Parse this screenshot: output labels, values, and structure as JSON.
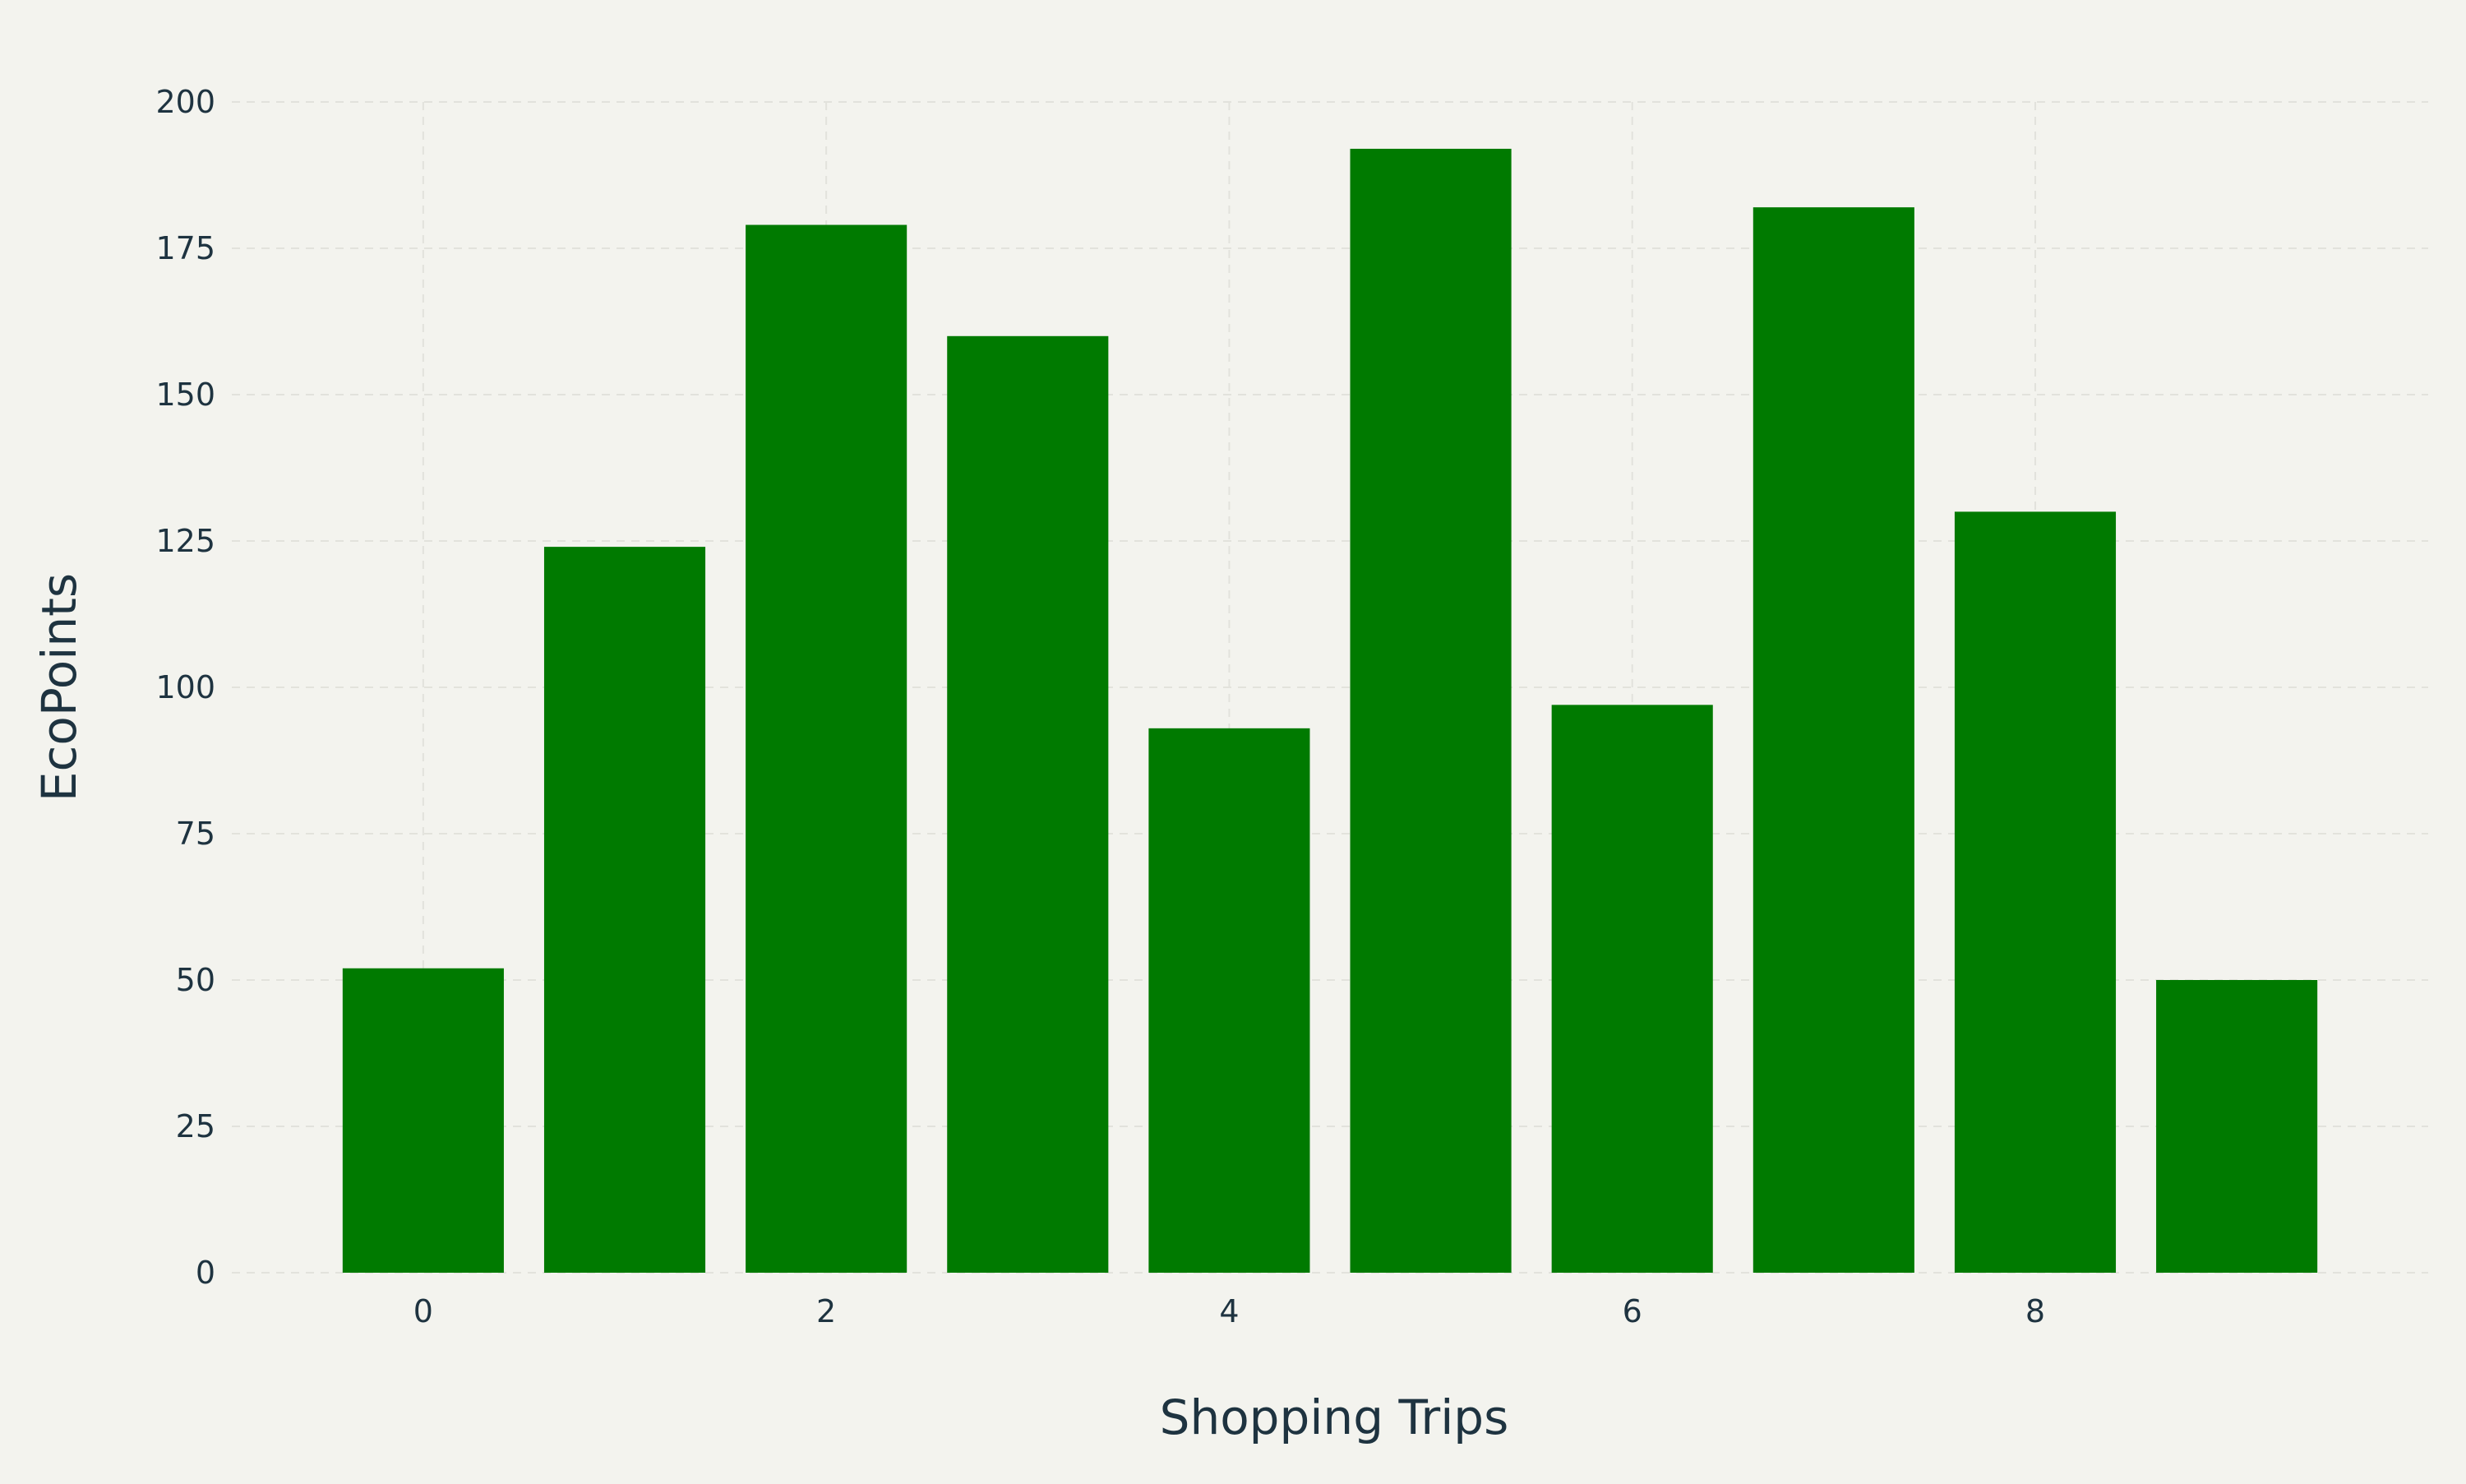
{
  "chart_data": {
    "type": "bar",
    "title": "",
    "xlabel": "Shopping Trips",
    "ylabel": "EcoPoints",
    "x": [
      0,
      1,
      2,
      3,
      4,
      5,
      6,
      7,
      8,
      9
    ],
    "values": [
      52,
      124,
      179,
      160,
      93,
      192,
      97,
      182,
      130,
      50
    ],
    "xlim": [
      -0.95,
      9.95
    ],
    "ylim": [
      0,
      200
    ],
    "x_ticks": [
      0,
      2,
      4,
      6,
      8
    ],
    "y_ticks": [
      0,
      25,
      50,
      75,
      100,
      125,
      150,
      175,
      200
    ],
    "grid": true,
    "legend": "none",
    "bar_color": "#007a00",
    "background_color": "#f3f3ee",
    "grid_color": "#e2e2dc",
    "text_color": "#1e3340"
  }
}
